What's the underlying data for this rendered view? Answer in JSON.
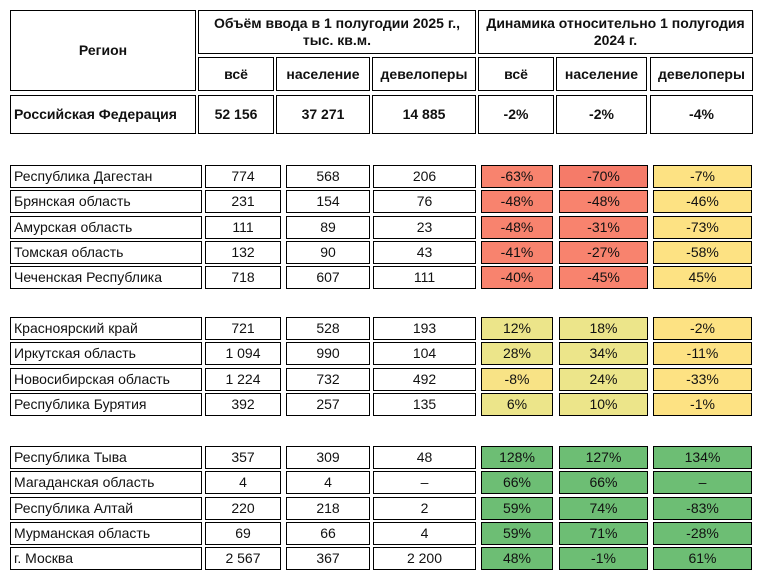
{
  "header": {
    "region": "Регион",
    "volume": "Объём ввода в 1 полугодии 2025 г., тыс. кв.м.",
    "dynamics": "Динамика относительно 1 полугодия 2024 г.",
    "sub": [
      "всё",
      "население",
      "девелоперы",
      "всё",
      "население",
      "девелоперы"
    ]
  },
  "total": [
    "Российская Федерация",
    "52 156",
    "37 271",
    "14 885",
    "-2%",
    "-2%",
    "-4%"
  ],
  "groups": [
    [
      {
        "cells": [
          "Республика Дагестан",
          "774",
          "568",
          "206",
          "-63%",
          "-70%",
          "-7%"
        ],
        "fills": [
          "#f8836e",
          "#f57b69",
          "#fde283"
        ]
      },
      {
        "cells": [
          "Брянская область",
          "231",
          "154",
          "76",
          "-48%",
          "-48%",
          "-46%"
        ],
        "fills": [
          "#f8836e",
          "#f8836e",
          "#fde283"
        ]
      },
      {
        "cells": [
          "Амурская область",
          "111",
          "89",
          "23",
          "-48%",
          "-31%",
          "-73%"
        ],
        "fills": [
          "#f8836e",
          "#f8836e",
          "#fde283"
        ]
      },
      {
        "cells": [
          "Томская область",
          "132",
          "90",
          "43",
          "-41%",
          "-27%",
          "-58%"
        ],
        "fills": [
          "#f8836e",
          "#f8836e",
          "#fde283"
        ]
      },
      {
        "cells": [
          "Чеченская Республика",
          "718",
          "607",
          "111",
          "-40%",
          "-45%",
          "45%"
        ],
        "fills": [
          "#f8836e",
          "#f8836e",
          "#fde283"
        ]
      }
    ],
    [
      {
        "cells": [
          "Красноярский край",
          "721",
          "528",
          "193",
          "12%",
          "18%",
          "-2%"
        ],
        "fills": [
          "#ece58a",
          "#ece58a",
          "#fde283"
        ]
      },
      {
        "cells": [
          "Иркутская область",
          "1 094",
          "990",
          "104",
          "28%",
          "34%",
          "-11%"
        ],
        "fills": [
          "#ece58a",
          "#ece58a",
          "#fde283"
        ]
      },
      {
        "cells": [
          "Новосибирская область",
          "1 224",
          "732",
          "492",
          "-8%",
          "24%",
          "-33%"
        ],
        "fills": [
          "#f8e386",
          "#ece58a",
          "#fde283"
        ]
      },
      {
        "cells": [
          "Республика Бурятия",
          "392",
          "257",
          "135",
          "6%",
          "10%",
          "-1%"
        ],
        "fills": [
          "#ece58a",
          "#ece58a",
          "#fde283"
        ]
      }
    ],
    [
      {
        "cells": [
          "Республика Тыва",
          "357",
          "309",
          "48",
          "128%",
          "127%",
          "134%"
        ],
        "fills": [
          "#6dbe74",
          "#6dbe74",
          "#6dbe74"
        ]
      },
      {
        "cells": [
          "Магаданская область",
          "4",
          "4",
          "–",
          "66%",
          "66%",
          "–"
        ],
        "fills": [
          "#6dbe74",
          "#6dbe74",
          "#6dbe74"
        ]
      },
      {
        "cells": [
          "Республика Алтай",
          "220",
          "218",
          "2",
          "59%",
          "74%",
          "-83%"
        ],
        "fills": [
          "#6dbe74",
          "#6dbe74",
          "#6dbe74"
        ]
      },
      {
        "cells": [
          "Мурманская область",
          "69",
          "66",
          "4",
          "59%",
          "71%",
          "-28%"
        ],
        "fills": [
          "#6dbe74",
          "#6dbe74",
          "#6dbe74"
        ]
      },
      {
        "cells": [
          "г. Москва",
          "2 567",
          "367",
          "2 200",
          "48%",
          "-1%",
          "61%"
        ],
        "fills": [
          "#6dbe74",
          "#6dbe74",
          "#6dbe74"
        ]
      }
    ]
  ]
}
